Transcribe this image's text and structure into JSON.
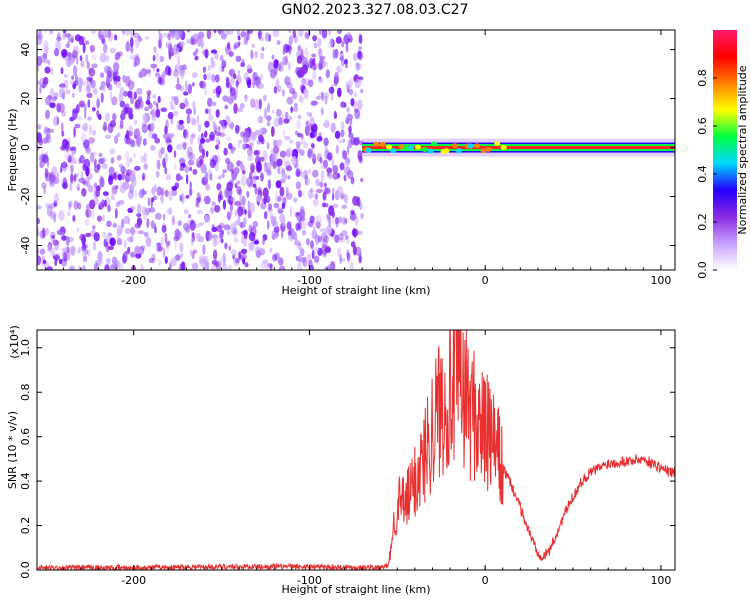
{
  "title": "GN02.2023.327.08.03.C27",
  "chart_data": [
    {
      "type": "heatmap",
      "xlabel": "Height of straight line (km)",
      "ylabel": "Frequency (Hz)",
      "xlim": [
        -255,
        108
      ],
      "ylim": [
        -50,
        48
      ],
      "x_ticks": [
        -200,
        -100,
        0,
        100
      ],
      "y_ticks": [
        -40,
        -20,
        0,
        20,
        40
      ],
      "grid": false,
      "colorbar": {
        "label": "Normalized spectral amplitude",
        "ticks": [
          0.0,
          0.2,
          0.4,
          0.6,
          0.8
        ],
        "range": [
          0,
          1
        ],
        "colors": [
          "#ffffff",
          "#c8a0ff",
          "#8a2be2",
          "#2400ff",
          "#00d8ff",
          "#00ff40",
          "#ffff00",
          "#ff8000",
          "#ff0000",
          "#ff1a6a"
        ]
      },
      "regions": [
        {
          "name": "noise",
          "x_range": [
            -255,
            -70
          ],
          "y_range": [
            -50,
            48
          ],
          "amplitude": [
            0.05,
            0.3
          ]
        },
        {
          "name": "signal",
          "x_range": [
            -70,
            108
          ],
          "center_frequency": 0,
          "half_width": 2.5,
          "amplitude_peak": 1.0
        }
      ]
    },
    {
      "type": "line",
      "xlabel": "Height of straight line (km)",
      "ylabel": "SNR (10 * v/v)",
      "y_scale_label": "(x10⁴)",
      "xlim": [
        -255,
        108
      ],
      "ylim": [
        0,
        1.08
      ],
      "x_ticks": [
        -200,
        -100,
        0,
        100
      ],
      "y_ticks": [
        0.0,
        0.2,
        0.4,
        0.6,
        0.8,
        1.0
      ],
      "grid": false,
      "color": "#e83030",
      "x": [
        -255,
        -200,
        -150,
        -100,
        -60,
        -55,
        -52,
        -50,
        -45,
        -40,
        -35,
        -30,
        -25,
        -20,
        -15,
        -10,
        -5,
        0,
        5,
        10,
        15,
        20,
        25,
        30,
        33,
        36,
        40,
        45,
        50,
        55,
        60,
        70,
        80,
        90,
        95,
        100,
        105,
        108
      ],
      "y": [
        0.01,
        0.01,
        0.015,
        0.015,
        0.01,
        0.02,
        0.2,
        0.3,
        0.3,
        0.4,
        0.5,
        0.65,
        0.75,
        0.8,
        0.85,
        0.75,
        0.68,
        0.62,
        0.56,
        0.46,
        0.38,
        0.28,
        0.17,
        0.08,
        0.06,
        0.08,
        0.15,
        0.25,
        0.33,
        0.4,
        0.44,
        0.48,
        0.49,
        0.5,
        0.48,
        0.46,
        0.44,
        0.44
      ]
    }
  ]
}
